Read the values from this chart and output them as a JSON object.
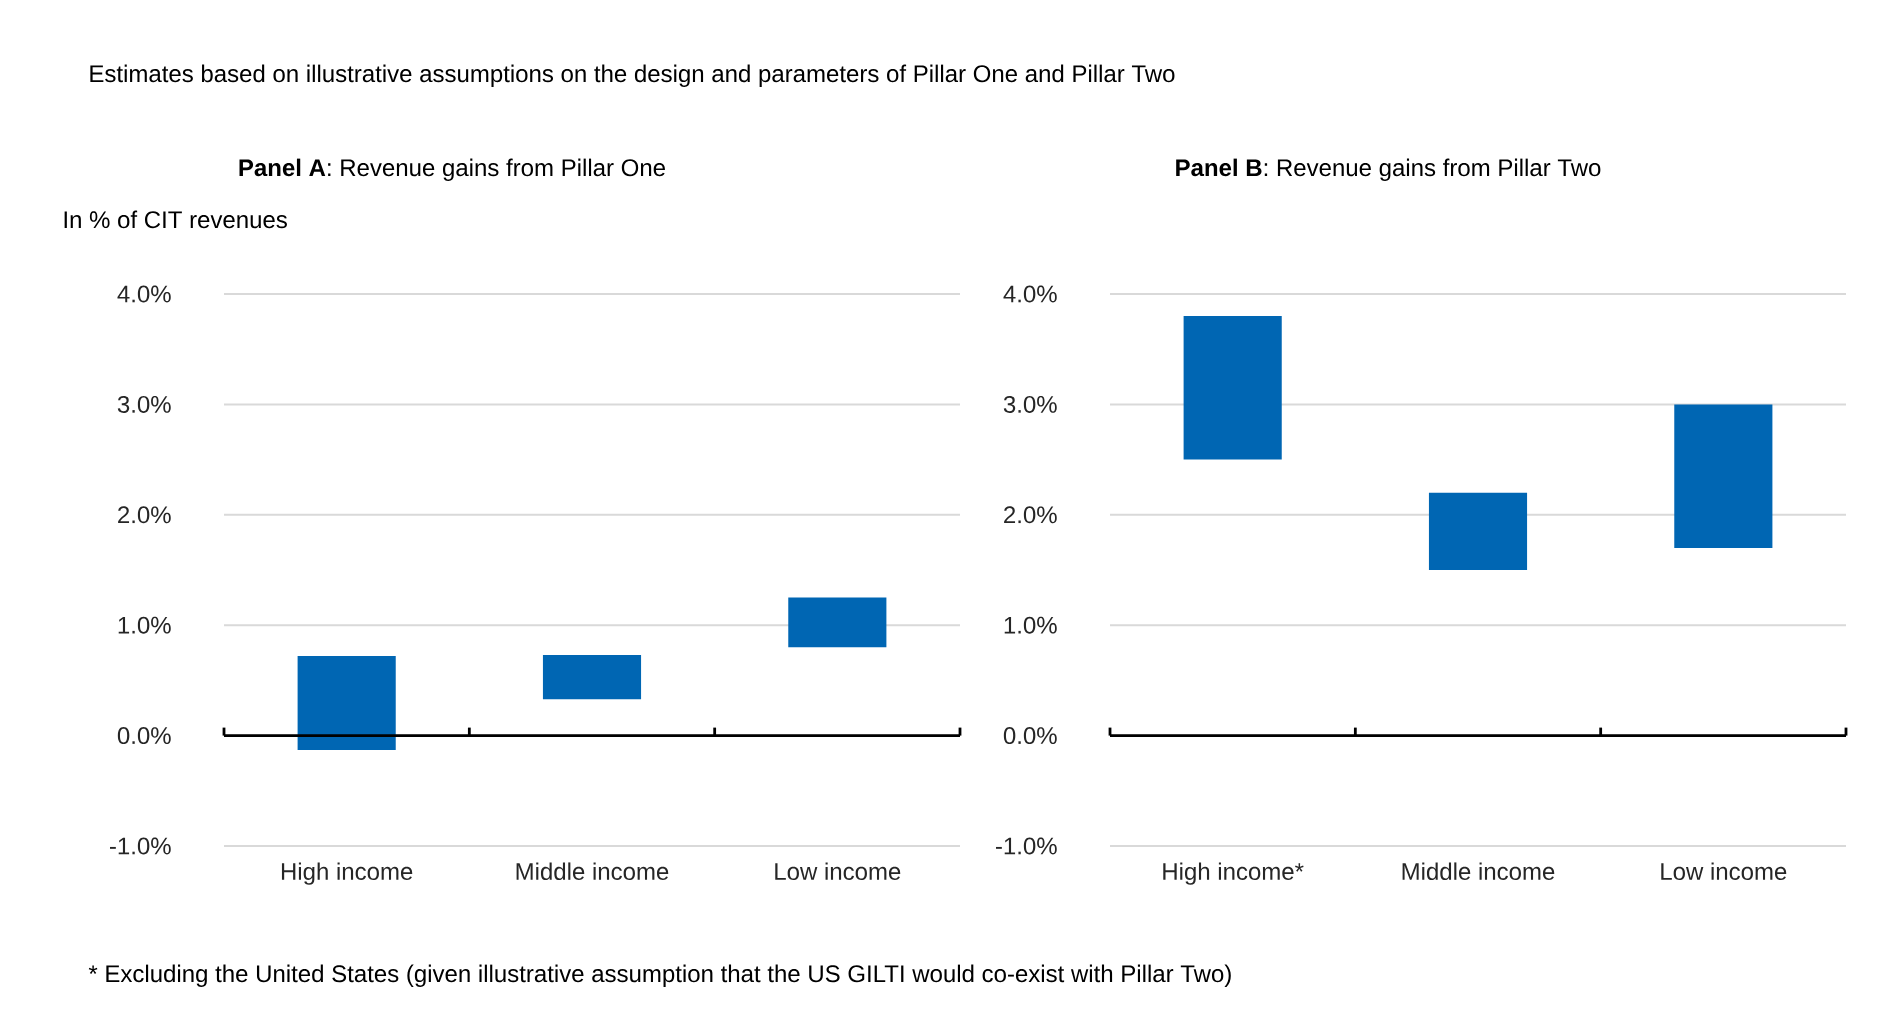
{
  "chart_data": [
    {
      "type": "bar",
      "title": "**Panel A**: Revenue gains from Pillar One",
      "ylabel": "In % of CIT revenues",
      "categories": [
        "High income",
        "Middle income",
        "Low income"
      ],
      "base": [
        -0.13,
        0.33,
        0.8
      ],
      "values": [
        0.85,
        0.4,
        0.45
      ],
      "color": "#0066b3",
      "ylim": [
        -1,
        4
      ],
      "yticks": [
        {
          "value": -1,
          "label": "-1.0%"
        },
        {
          "value": 0,
          "label": "0.0%"
        },
        {
          "value": 1,
          "label": "1.0%"
        },
        {
          "value": 2,
          "label": "2.0%"
        },
        {
          "value": 3,
          "label": "3.0%"
        },
        {
          "value": 4,
          "label": "4.0%"
        }
      ],
      "grid": "y",
      "annotations": [
        "Estimates based on illustrative assumptions on the design and parameters of Pillar One and Pillar Two"
      ]
    },
    {
      "type": "bar",
      "title": "**Panel B**: Revenue gains from Pillar Two",
      "categories": [
        "High income*",
        "Middle income",
        "Low income"
      ],
      "base": [
        2.5,
        1.5,
        1.7
      ],
      "values": [
        1.3,
        0.7,
        1.3
      ],
      "color": "#0066b3",
      "ylim": [
        -1,
        4
      ],
      "yticks": [
        {
          "value": -1,
          "label": "-1.0%"
        },
        {
          "value": 0,
          "label": "0.0%"
        },
        {
          "value": 1,
          "label": "1.0%"
        },
        {
          "value": 2,
          "label": "2.0%"
        },
        {
          "value": 3,
          "label": "3.0%"
        },
        {
          "value": 4,
          "label": "4.0%"
        }
      ],
      "grid": "y",
      "annotations": [
        "* Excluding the United States (given illustrative assumption that the US GILTI would co-exist with Pillar Two)"
      ]
    }
  ]
}
